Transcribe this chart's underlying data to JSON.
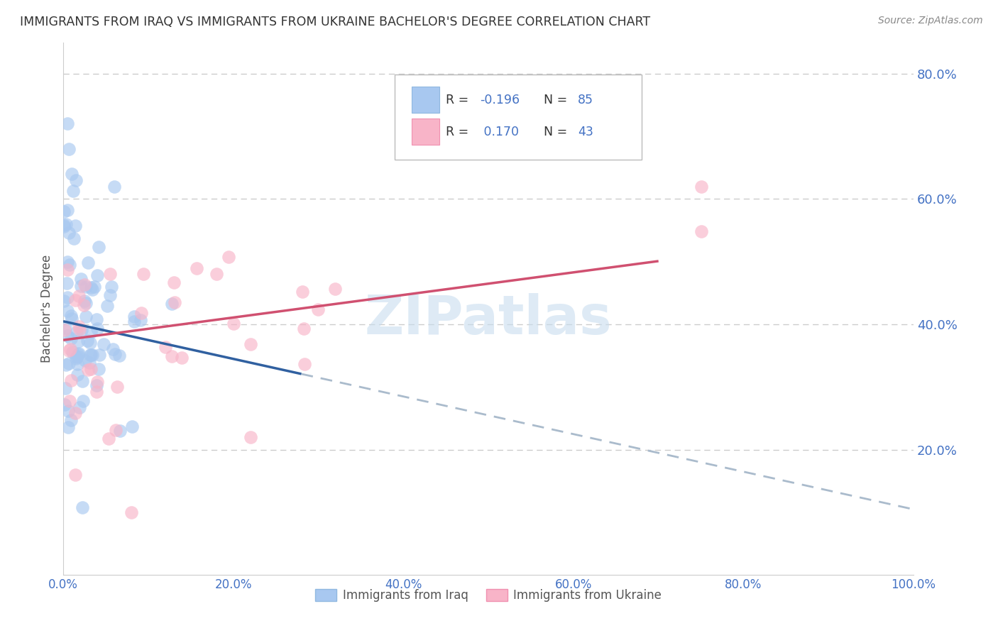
{
  "title": "IMMIGRANTS FROM IRAQ VS IMMIGRANTS FROM UKRAINE BACHELOR'S DEGREE CORRELATION CHART",
  "source": "Source: ZipAtlas.com",
  "ylabel": "Bachelor's Degree",
  "xlim": [
    0.0,
    1.0
  ],
  "ylim": [
    0.0,
    0.85
  ],
  "xticks": [
    0.0,
    0.2,
    0.4,
    0.6,
    0.8,
    1.0
  ],
  "xticklabels": [
    "0.0%",
    "20.0%",
    "40.0%",
    "60.0%",
    "80.0%",
    "100.0%"
  ],
  "yticks": [
    0.2,
    0.4,
    0.6,
    0.8
  ],
  "yticklabels": [
    "20.0%",
    "40.0%",
    "60.0%",
    "80.0%"
  ],
  "iraq_color": "#A8C8F0",
  "ukraine_color": "#F8B4C8",
  "iraq_R": -0.196,
  "iraq_N": 85,
  "ukraine_R": 0.17,
  "ukraine_N": 43,
  "trend_iraq_color": "#3060A0",
  "trend_ukraine_color": "#D05070",
  "trend_dashed_color": "#AABBCC",
  "watermark": "ZIPatlas",
  "background_color": "#FFFFFF",
  "tick_color": "#4472C4",
  "label_color": "#555555",
  "grid_color": "#CCCCCC",
  "iraq_label": "Immigrants from Iraq",
  "ukraine_label": "Immigrants from Ukraine"
}
